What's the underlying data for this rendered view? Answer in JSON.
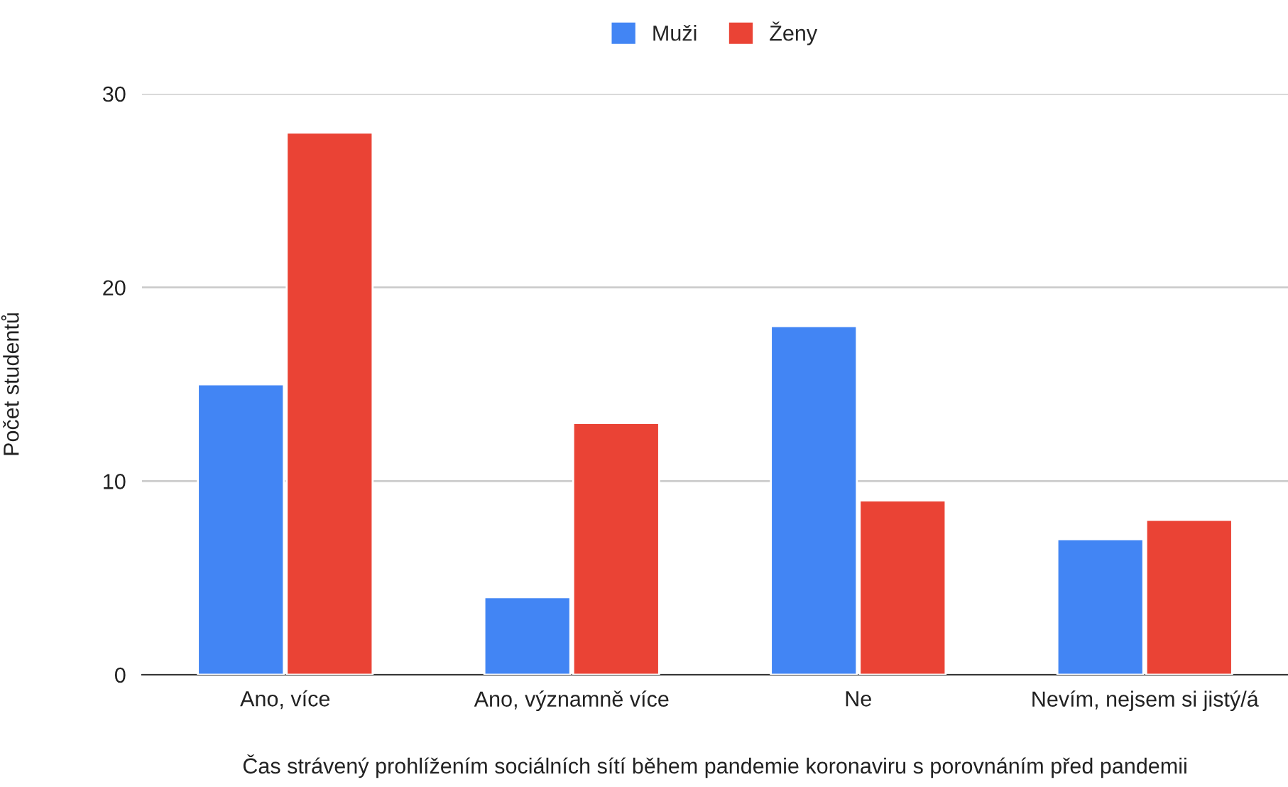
{
  "chart_data": {
    "type": "bar",
    "categories": [
      "Ano, více",
      "Ano, významně více",
      "Ne",
      "Nevím, nejsem si jistý/á"
    ],
    "series": [
      {
        "name": "Muži",
        "color": "#4285f4",
        "values": [
          15,
          4,
          18,
          7
        ]
      },
      {
        "name": "Ženy",
        "color": "#ea4335",
        "values": [
          28,
          13,
          9,
          8
        ]
      }
    ],
    "xlabel": "Čas strávený prohlížením sociálních sítí během pandemie koronaviru s porovnáním před pandemii",
    "ylabel": "Počet studentů",
    "ylim": [
      0,
      30
    ],
    "yticks": [
      0,
      10,
      20,
      30
    ],
    "grid": "y",
    "legend": "top"
  }
}
